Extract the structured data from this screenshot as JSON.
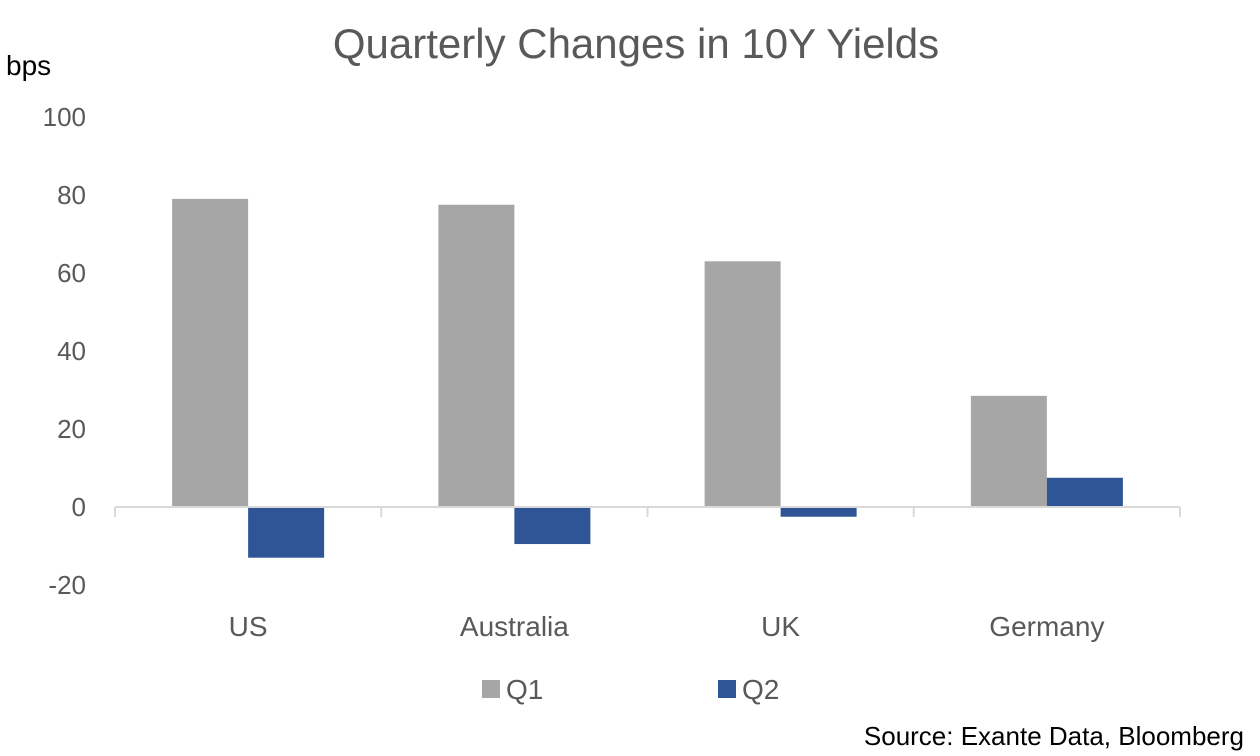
{
  "chart_data": {
    "type": "bar",
    "title": "Quarterly Changes in 10Y Yields",
    "ylabel": "bps",
    "xlabel": "",
    "ylim": [
      -20,
      100
    ],
    "yticks": [
      100,
      80,
      60,
      40,
      20,
      0,
      -20
    ],
    "categories": [
      "US",
      "Australia",
      "UK",
      "Germany"
    ],
    "series": [
      {
        "name": "Q1",
        "color": "#a6a6a6",
        "values": [
          79,
          77.5,
          63,
          28.5
        ]
      },
      {
        "name": "Q2",
        "color": "#2f5597",
        "values": [
          -13,
          -9.5,
          -2.5,
          7.5
        ]
      }
    ],
    "legend_position": "bottom",
    "grid": false,
    "source": "Source: Exante Data, Bloomberg"
  }
}
